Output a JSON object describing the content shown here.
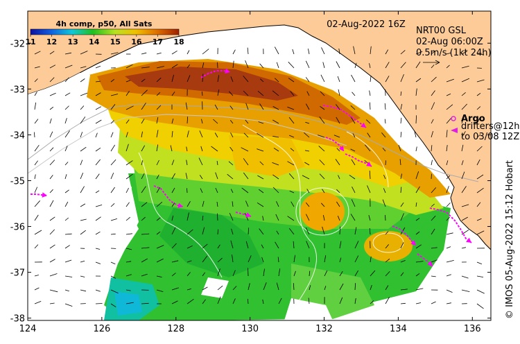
{
  "header": {
    "datetime": "02-Aug-2022 16Z",
    "currents_title": "NRT00 GSL",
    "currents_time": "02-Aug 06:00Z",
    "currents_scale": "0.5m/s (1kt 24h)"
  },
  "colorbar": {
    "title": "4h comp, p50, All Sats",
    "ticks": [
      "11",
      "12",
      "13",
      "14",
      "15",
      "16",
      "17",
      "18"
    ],
    "min": 11,
    "max": 18
  },
  "legend": {
    "argo_label": "Argo",
    "drifters_line1": "drifters@12h",
    "drifters_line2": "to 03/08 12Z"
  },
  "credit": "© IMOS 05-Aug-2022 15:12 Hobart",
  "axes": {
    "x_ticks": [
      "124",
      "126",
      "128",
      "130",
      "132",
      "134",
      "136"
    ],
    "y_ticks": [
      "-32",
      "-33",
      "-34",
      "-35",
      "-36",
      "-37",
      "-38"
    ],
    "lon_range": [
      124,
      136.5
    ],
    "lat_range": [
      -38.05,
      -31.3
    ]
  },
  "colors": {
    "land": "#fccb98",
    "argo": "#e020e0",
    "drifter": "#ff00ff"
  }
}
